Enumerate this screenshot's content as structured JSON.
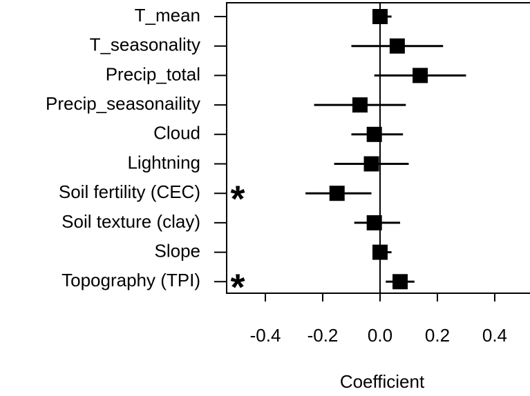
{
  "chart_data": {
    "type": "coefficient",
    "categories": [
      "T_mean",
      "T_seasonality",
      "Precip_total",
      "Precip_seasonaility",
      "Cloud",
      "Lightning",
      "Soil fertility (CEC)",
      "Soil texture (clay)",
      "Slope",
      "Topography (TPI)"
    ],
    "values": [
      0.0,
      0.06,
      0.14,
      -0.07,
      -0.02,
      -0.03,
      -0.15,
      -0.02,
      0.0,
      0.07
    ],
    "lower": [
      -0.02,
      -0.1,
      -0.02,
      -0.23,
      -0.1,
      -0.16,
      -0.26,
      -0.09,
      -0.02,
      0.02
    ],
    "upper": [
      0.04,
      0.22,
      0.3,
      0.09,
      0.08,
      0.1,
      -0.03,
      0.07,
      0.04,
      0.12
    ],
    "annotations": [
      null,
      null,
      null,
      null,
      null,
      null,
      "*",
      null,
      null,
      "*"
    ],
    "color": "#000000",
    "xlabel": "Coefficient",
    "xlim": [
      -0.535,
      0.523
    ],
    "xticks": [
      -0.4,
      -0.2,
      {
        "value": 0,
        "label": "0.0"
      },
      0.2,
      0.4
    ]
  }
}
